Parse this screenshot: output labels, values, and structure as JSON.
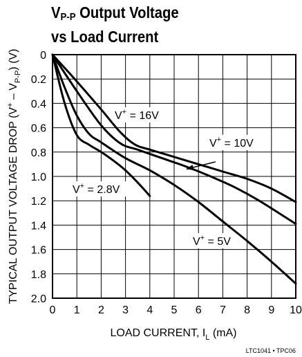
{
  "title_line1_main": "V",
  "title_line1_sub": "P-P",
  "title_line1_rest": " Output Voltage",
  "title_line2": "vs Load Current",
  "figure_id": "LTC1041 • TPC06",
  "chart_data": {
    "type": "line",
    "xlabel": "LOAD CURRENT, I_L (mA)",
    "xlabel_parts": {
      "main": "LOAD CURRENT, I",
      "sub": "L",
      "rest": " (mA)"
    },
    "ylabel": "TYPICAL OUTPUT VOLTAGE DROP (V+ – VP-P) (V)",
    "ylabel_parts": {
      "a": "TYPICAL OUTPUT VOLTAGE DROP (V",
      "sup": "+",
      "b": " – V",
      "sub": "P-P",
      "c": ") (V)"
    },
    "xlim": [
      0,
      10
    ],
    "ylim": [
      0,
      2.0
    ],
    "y_inverted": true,
    "x_ticks": [
      "0",
      "1",
      "2",
      "3",
      "4",
      "5",
      "6",
      "7",
      "8",
      "9",
      "10"
    ],
    "y_ticks": [
      "0",
      "0.2",
      "0.4",
      "0.6",
      "0.8",
      "1.0",
      "1.2",
      "1.4",
      "1.6",
      "1.8",
      "2.0"
    ],
    "grid": true,
    "series": [
      {
        "name": "V+ = 16V",
        "label_main": "V",
        "label_sup": "+",
        "label_rest": " = 16V",
        "x": [
          0,
          1,
          2,
          2.8,
          3.4,
          4,
          5,
          6,
          7,
          8,
          9,
          10
        ],
        "y": [
          0,
          0.22,
          0.45,
          0.64,
          0.74,
          0.78,
          0.84,
          0.9,
          0.96,
          1.02,
          1.1,
          1.21
        ]
      },
      {
        "name": "V+ = 10V",
        "label_main": "V",
        "label_sup": "+",
        "label_rest": " = 10V",
        "x": [
          0,
          1,
          2,
          2.8,
          3.5,
          4.5,
          5.5,
          6.5,
          7.5,
          8.5,
          10
        ],
        "y": [
          0,
          0.3,
          0.58,
          0.73,
          0.78,
          0.85,
          0.92,
          1.0,
          1.09,
          1.2,
          1.39
        ]
      },
      {
        "name": "V+ = 5V",
        "label_main": "V",
        "label_sup": "+",
        "label_rest": " = 5V",
        "x": [
          0,
          0.5,
          1,
          1.5,
          2,
          3,
          4,
          5,
          6,
          7,
          8,
          9,
          10
        ],
        "y": [
          0,
          0.27,
          0.5,
          0.65,
          0.72,
          0.85,
          0.95,
          1.07,
          1.21,
          1.37,
          1.53,
          1.7,
          1.88
        ]
      },
      {
        "name": "V+ = 2.8V",
        "label_main": "V",
        "label_sup": "+",
        "label_rest": " = 2.8V",
        "x": [
          0,
          0.5,
          1,
          1.5,
          2,
          2.5,
          3,
          3.5,
          4
        ],
        "y": [
          0,
          0.4,
          0.66,
          0.74,
          0.8,
          0.87,
          0.95,
          1.05,
          1.16
        ]
      }
    ],
    "arrow_annotation": {
      "series": "V+ = 10V",
      "from": [
        6.7,
        0.88
      ],
      "to": [
        5.5,
        0.94
      ]
    }
  }
}
